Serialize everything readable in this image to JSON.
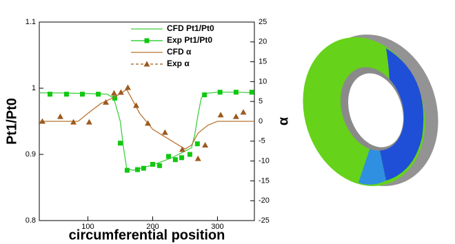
{
  "chart_data": {
    "type": "line",
    "y_label": "Pt1/Pt0",
    "y2_label": "α",
    "x_label": "circumferential position",
    "xlim": [
      25,
      357
    ],
    "xticks": [
      100,
      200,
      300
    ],
    "ylim": [
      0.8,
      1.1
    ],
    "yticks": [
      0.8,
      0.9,
      1,
      1.1
    ],
    "y2lim": [
      -25,
      25
    ],
    "y2ticks": [
      -25,
      -20,
      -15,
      -10,
      -5,
      0,
      5,
      10,
      15,
      20,
      25
    ],
    "legend": "upper right",
    "series": [
      {
        "name": "CFD Pt1/Pt0",
        "color": "#3ecf3e",
        "marker": "none",
        "line_style": "solid",
        "x": [
          25,
          50,
          100,
          130,
          140,
          150,
          155,
          160,
          170,
          200,
          230,
          250,
          260,
          265,
          270,
          275,
          280,
          300,
          330,
          357
        ],
        "values": [
          0.993,
          0.993,
          0.992,
          0.991,
          0.985,
          0.95,
          0.91,
          0.878,
          0.876,
          0.884,
          0.895,
          0.905,
          0.91,
          0.93,
          0.96,
          0.985,
          0.992,
          0.994,
          0.994,
          0.993
        ]
      },
      {
        "name": "Exp Pt1/Pt0",
        "color": "#11c811",
        "marker": "square",
        "line_style": "none",
        "x": [
          41.5,
          67,
          91.5,
          116,
          141.5,
          150,
          160.6,
          176.6,
          186,
          200,
          210.6,
          224.5,
          235,
          244.7,
          257.4,
          269,
          280,
          304,
          328.7,
          353
        ],
        "values": [
          0.991,
          0.991,
          0.991,
          0.991,
          0.985,
          0.917,
          0.876,
          0.877,
          0.879,
          0.885,
          0.883,
          0.897,
          0.892,
          0.895,
          0.9,
          0.916,
          0.99,
          0.994,
          0.994,
          0.994
        ]
      },
      {
        "name": "CFD α",
        "color": "#b8732e",
        "marker": "none",
        "line_style": "solid",
        "axis": "y2",
        "x": [
          25,
          85,
          100,
          120,
          140,
          150,
          160,
          170,
          180,
          200,
          220,
          240,
          250,
          260,
          270,
          285,
          300,
          357
        ],
        "values": [
          0,
          0,
          2,
          4.5,
          6,
          7,
          8,
          5,
          2,
          -2,
          -4,
          -6,
          -7,
          -6,
          -3,
          -1,
          0,
          0
        ]
      },
      {
        "name": "Exp α",
        "color": "#9c5a1e",
        "marker": "triangle",
        "line_style": "none",
        "axis": "y2",
        "x": [
          29.8,
          57.4,
          77.7,
          102,
          127.7,
          140.4,
          151,
          161.7,
          174.5,
          192.6,
          219,
          245.7,
          270,
          281,
          305,
          328.7,
          340
        ],
        "values": [
          0,
          1.2,
          -0.2,
          -0.2,
          4.8,
          7.1,
          7.3,
          8.5,
          4,
          -0.5,
          -2.8,
          -7.1,
          -9.4,
          -6,
          1.6,
          1.2,
          2.3
        ]
      }
    ]
  }
}
